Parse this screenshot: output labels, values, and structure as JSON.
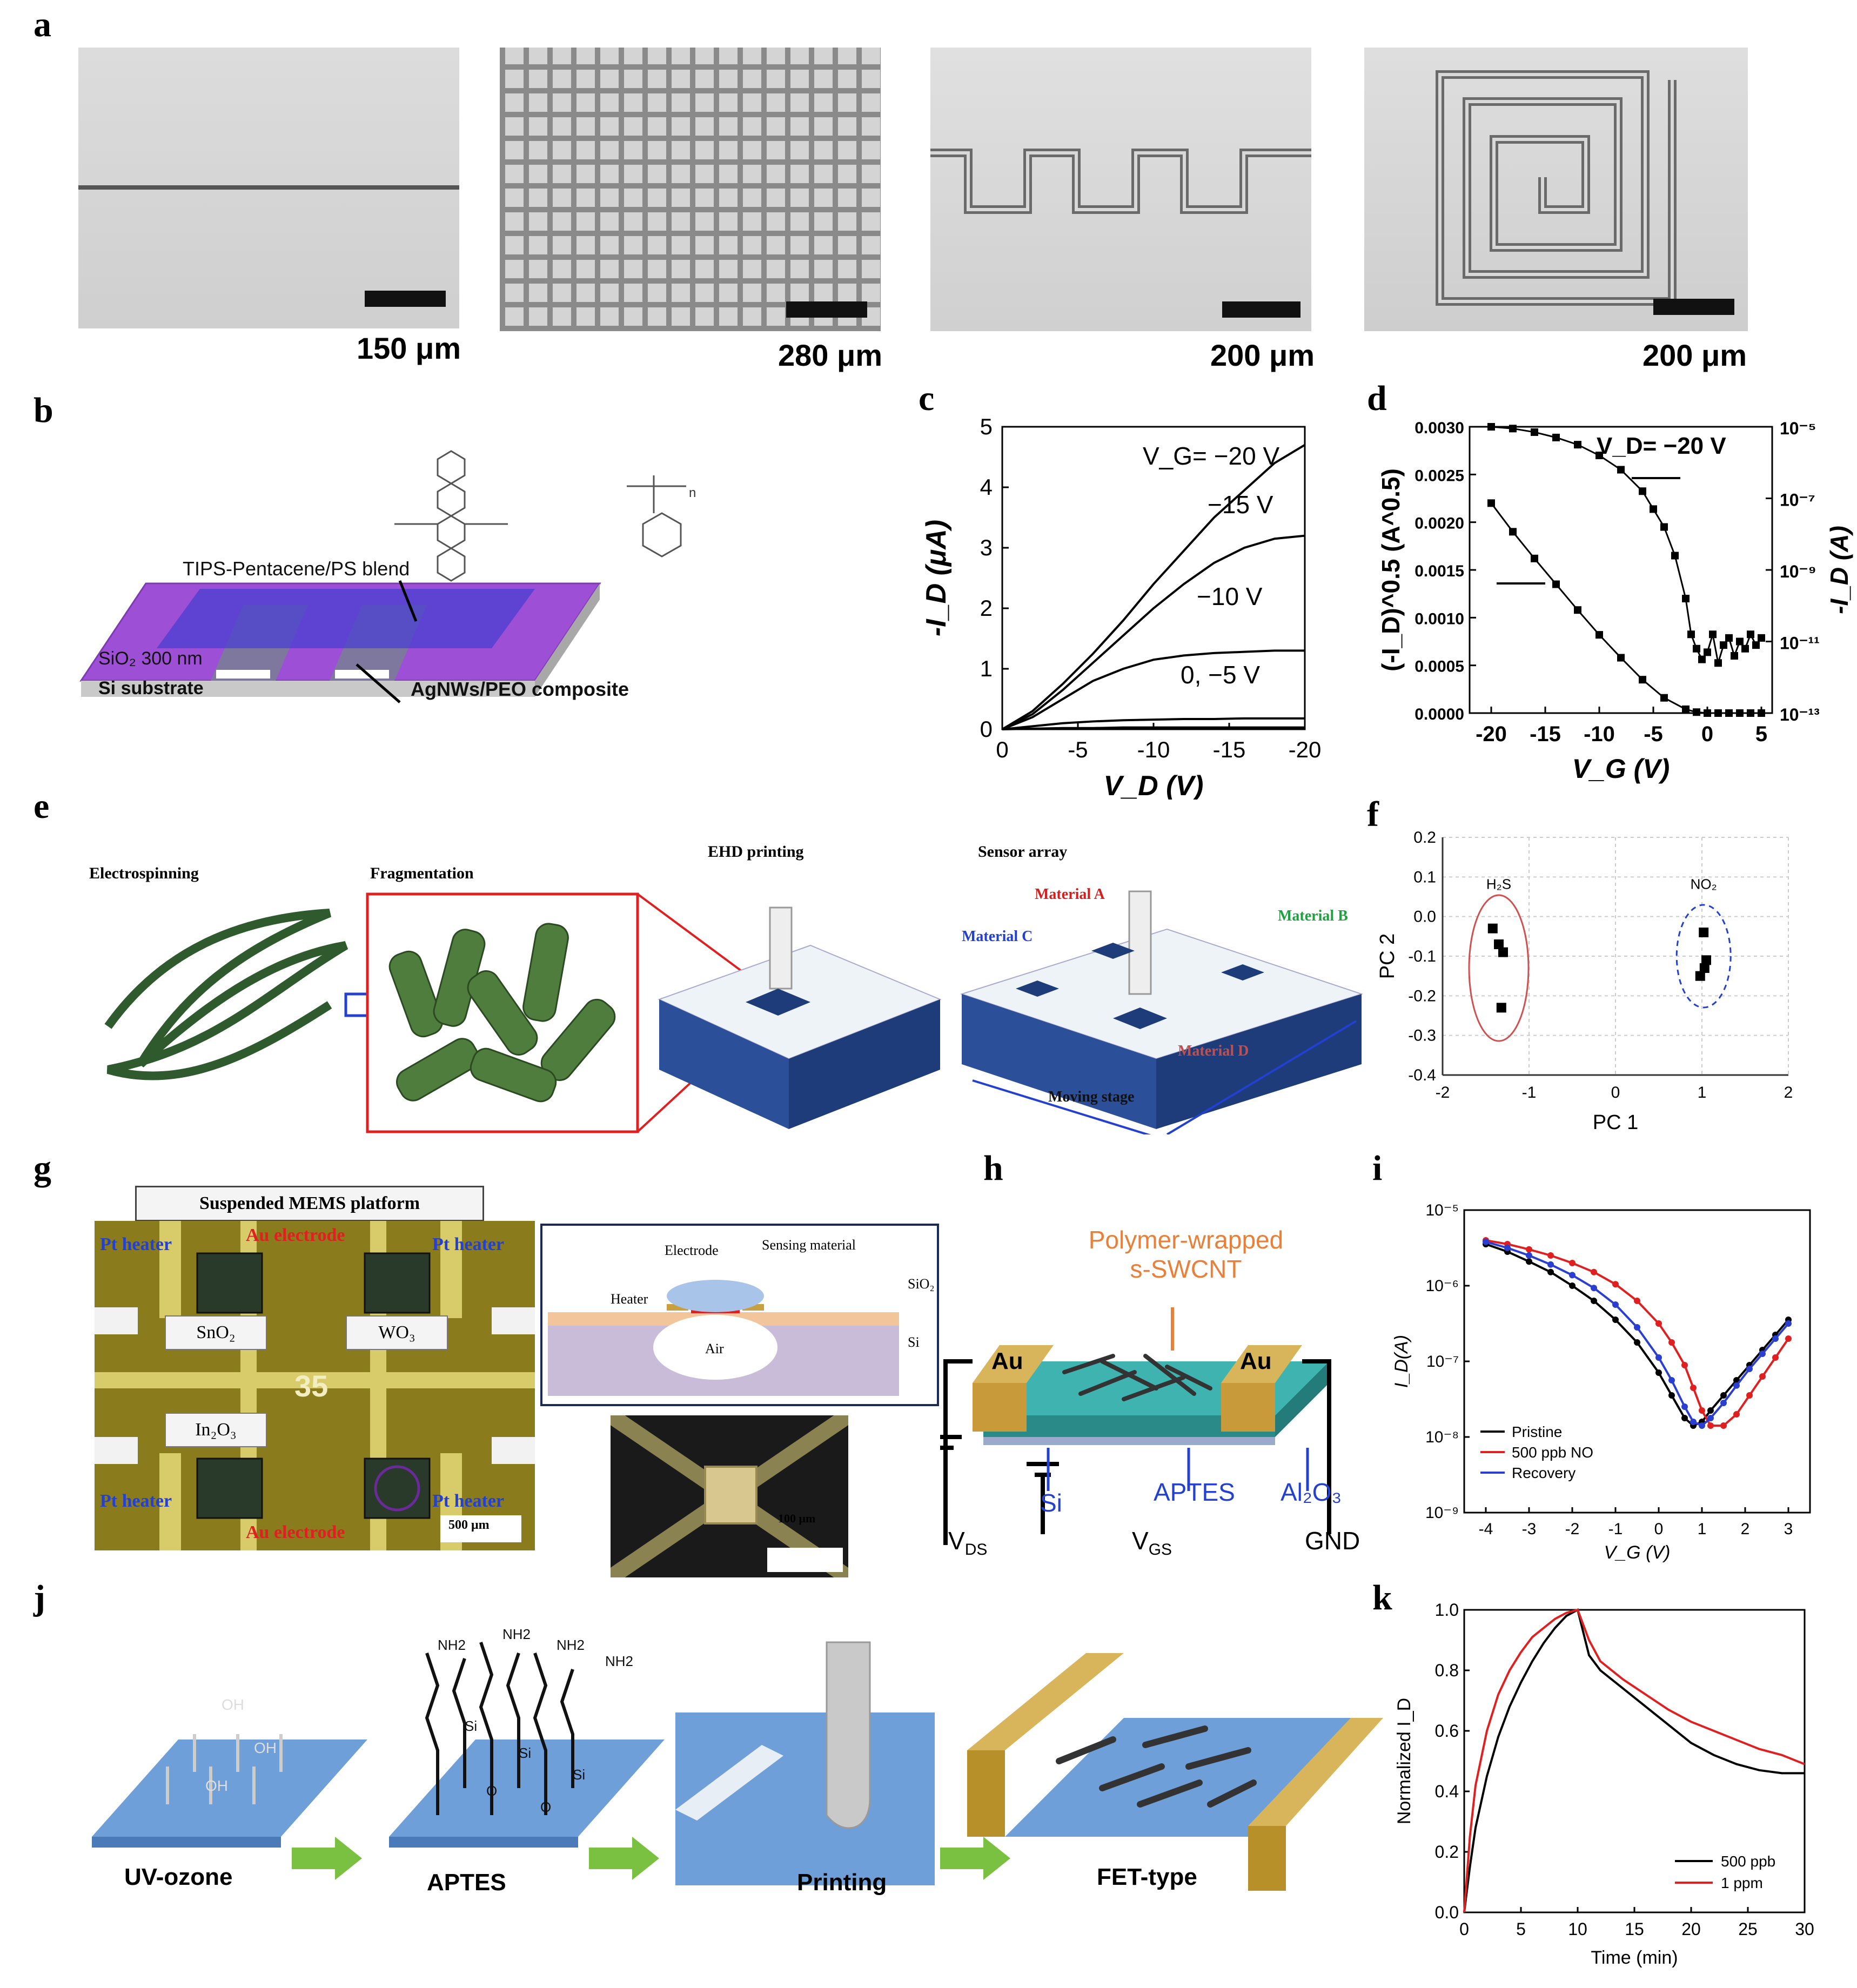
{
  "panels": {
    "a": "a",
    "b": "b",
    "c": "c",
    "d": "d",
    "e": "e",
    "f": "f",
    "g": "g",
    "h": "h",
    "i": "i",
    "j": "j",
    "k": "k"
  },
  "panel_a": {
    "scales": [
      "150 μm",
      "280 μm",
      "200 μm",
      "200 μm"
    ]
  },
  "panel_b": {
    "blend_label": "TIPS-Pentacene/PS blend",
    "oxide_label": "SiO₂ 300 nm",
    "substrate_label": "Si substrate",
    "electrode_label": "AgNWs/PEO  composite",
    "n_label": "n"
  },
  "panel_e": {
    "step1": "Electrospinning",
    "step2": "Fragmentation",
    "step3": "EHD printing",
    "step4": "Sensor array",
    "mat_a": "Material A",
    "mat_b": "Material B",
    "mat_c": "Material C",
    "mat_d": "Material D",
    "stage": "Moving stage"
  },
  "panel_g": {
    "title": "Suspended MEMS platform",
    "pt_heater": "Pt heater",
    "au_electrode": "Au electrode",
    "sno2": "SnO₂",
    "wo3": "WO₃",
    "in2o3": "In₂O₃",
    "chip_no": "35",
    "scale1": "500 μm",
    "scale2": "100 μm",
    "inset_electrode": "Electrode",
    "inset_sensing": "Sensing material",
    "inset_heater": "Heater",
    "inset_sio2": "SiO₂",
    "inset_air": "Air",
    "inset_si": "Si"
  },
  "panel_h": {
    "title_line1": "Polymer-wrapped",
    "title_line2": "s-SWCNT",
    "au": "Au",
    "si": "Si",
    "aptes": "APTES",
    "al2o3": "Al₂O₃",
    "vds": "V",
    "vds_sub": "DS",
    "vgs": "V",
    "vgs_sub": "GS",
    "gnd": "GND"
  },
  "panel_j": {
    "step1": "UV-ozone",
    "step2": "APTES",
    "step3": "Printing",
    "step4": "FET-type",
    "oh": "OH",
    "nh2": "NH2",
    "si": "Si",
    "o": "O"
  },
  "chart_data": [
    {
      "id": "c",
      "type": "line",
      "xlabel": "V_D (V)",
      "ylabel": "-I_D (μA)",
      "xlim": [
        0,
        -20
      ],
      "ylim": [
        0,
        5
      ],
      "x_ticks": [
        "0",
        "-5",
        "-10",
        "-15",
        "-20"
      ],
      "y_ticks": [
        "0",
        "1",
        "2",
        "3",
        "4",
        "5"
      ],
      "x": [
        0,
        -2,
        -4,
        -6,
        -8,
        -10,
        -12,
        -14,
        -16,
        -18,
        -20
      ],
      "series": [
        {
          "name": "V_G= −20 V",
          "values": [
            0,
            0.3,
            0.75,
            1.25,
            1.8,
            2.4,
            2.95,
            3.5,
            3.95,
            4.4,
            4.7
          ]
        },
        {
          "name": "−15 V",
          "values": [
            0,
            0.25,
            0.65,
            1.1,
            1.55,
            2.0,
            2.4,
            2.75,
            3.0,
            3.15,
            3.2
          ]
        },
        {
          "name": "−10 V",
          "values": [
            0,
            0.2,
            0.5,
            0.8,
            1.0,
            1.15,
            1.22,
            1.26,
            1.28,
            1.3,
            1.3
          ]
        },
        {
          "name": "0, −5 V",
          "values": [
            0,
            0.05,
            0.1,
            0.13,
            0.15,
            0.16,
            0.17,
            0.17,
            0.18,
            0.18,
            0.18
          ]
        },
        {
          "name": "",
          "values": [
            0,
            0.01,
            0.02,
            0.02,
            0.03,
            0.03,
            0.03,
            0.03,
            0.03,
            0.03,
            0.03
          ]
        }
      ],
      "labels": [
        "V_G= −20 V",
        "−15 V",
        "−10 V",
        "0, −5 V"
      ]
    },
    {
      "id": "d",
      "type": "scatter",
      "xlabel": "V_G (V)",
      "ylabel_left": "(-I_D)^0.5 (A^0.5)",
      "ylabel_right": "-I_D (A)",
      "xlim": [
        -22,
        6
      ],
      "ylim_left": [
        0,
        0.003
      ],
      "ylim_right_log": [
        -13,
        -5
      ],
      "x_ticks": [
        "-20",
        "-15",
        "-10",
        "-5",
        "0",
        "5"
      ],
      "y_ticks_left": [
        "0.0000",
        "0.0005",
        "0.0010",
        "0.0015",
        "0.0020",
        "0.0025",
        "0.0030"
      ],
      "y_ticks_right": [
        "10⁻¹³",
        "10⁻¹¹",
        "10⁻⁹",
        "10⁻⁷",
        "10⁻⁵"
      ],
      "annotation": "V_D= −20 V",
      "sqrt_series": {
        "x": [
          -20,
          -18,
          -16,
          -14,
          -12,
          -10,
          -8,
          -6,
          -4,
          -2,
          -1,
          0,
          1,
          2,
          3,
          4,
          5
        ],
        "values": [
          0.0022,
          0.0019,
          0.00162,
          0.00135,
          0.00108,
          0.00082,
          0.00058,
          0.00035,
          0.00016,
          4e-05,
          1e-05,
          0,
          0,
          0,
          0,
          0,
          0
        ]
      },
      "log_series": {
        "x": [
          -20,
          -18,
          -16,
          -14,
          -12,
          -10,
          -8,
          -6,
          -5,
          -4,
          -3,
          -2,
          -1.5,
          -1,
          -0.5,
          0,
          0.5,
          1,
          1.5,
          2,
          2.5,
          3,
          3.5,
          4,
          4.5,
          5
        ],
        "values": [
          -5.0,
          -5.05,
          -5.15,
          -5.3,
          -5.5,
          -5.8,
          -6.2,
          -6.8,
          -7.3,
          -7.8,
          -8.6,
          -9.8,
          -10.8,
          -11.2,
          -11.5,
          -11.3,
          -10.8,
          -11.6,
          -11.1,
          -10.9,
          -11.4,
          -11.0,
          -11.2,
          -10.8,
          -11.1,
          -10.9
        ]
      }
    },
    {
      "id": "f",
      "type": "scatter",
      "xlabel": "PC 1",
      "ylabel": "PC 2",
      "xlim": [
        -2,
        2
      ],
      "ylim": [
        -0.4,
        0.2
      ],
      "x_ticks": [
        "-2",
        "-1",
        "0",
        "1",
        "2"
      ],
      "y_ticks": [
        "0.2",
        "0.1",
        "0.0",
        "-0.1",
        "-0.2",
        "-0.3",
        "-0.4"
      ],
      "series": [
        {
          "name": "H₂S",
          "points": [
            [
              -1.42,
              -0.03
            ],
            [
              -1.35,
              -0.07
            ],
            [
              -1.3,
              -0.09
            ],
            [
              -1.32,
              -0.23
            ]
          ]
        },
        {
          "name": "NO₂",
          "points": [
            [
              1.02,
              -0.04
            ],
            [
              1.05,
              -0.11
            ],
            [
              1.03,
              -0.13
            ],
            [
              0.98,
              -0.15
            ]
          ]
        }
      ]
    },
    {
      "id": "i",
      "type": "line",
      "xlabel": "V_G (V)",
      "ylabel": "I_D(A)",
      "xlim": [
        -4.5,
        3.5
      ],
      "ylim_log": [
        -9,
        -5
      ],
      "x_ticks": [
        "-4",
        "-3",
        "-2",
        "-1",
        "0",
        "1",
        "2",
        "3"
      ],
      "y_ticks": [
        "10⁻⁹",
        "10⁻⁸",
        "10⁻⁷",
        "10⁻⁶",
        "10⁻⁵"
      ],
      "x": [
        -4,
        -3.5,
        -3,
        -2.5,
        -2,
        -1.5,
        -1,
        -0.5,
        0,
        0.3,
        0.6,
        0.8,
        1.0,
        1.2,
        1.5,
        1.8,
        2.1,
        2.4,
        2.7,
        3.0
      ],
      "series": [
        {
          "name": "Pristine",
          "color": "#000000",
          "values": [
            -5.45,
            -5.55,
            -5.68,
            -5.82,
            -6.0,
            -6.2,
            -6.45,
            -6.75,
            -7.15,
            -7.45,
            -7.75,
            -7.85,
            -7.8,
            -7.65,
            -7.45,
            -7.25,
            -7.05,
            -6.85,
            -6.65,
            -6.45
          ]
        },
        {
          "name": "500 ppb NO",
          "color": "#e02020",
          "values": [
            -5.4,
            -5.45,
            -5.52,
            -5.6,
            -5.7,
            -5.82,
            -5.98,
            -6.2,
            -6.5,
            -6.75,
            -7.05,
            -7.35,
            -7.65,
            -7.85,
            -7.85,
            -7.7,
            -7.45,
            -7.2,
            -6.95,
            -6.7
          ]
        },
        {
          "name": "Recovery",
          "color": "#2a3fd0",
          "values": [
            -5.42,
            -5.5,
            -5.6,
            -5.72,
            -5.86,
            -6.03,
            -6.25,
            -6.55,
            -6.95,
            -7.25,
            -7.6,
            -7.8,
            -7.85,
            -7.75,
            -7.55,
            -7.32,
            -7.1,
            -6.9,
            -6.7,
            -6.5
          ]
        }
      ]
    },
    {
      "id": "k",
      "type": "line",
      "xlabel": "Time (min)",
      "ylabel": "Normalized I_D",
      "xlim": [
        0,
        30
      ],
      "ylim": [
        0,
        1
      ],
      "x_ticks": [
        "0",
        "5",
        "10",
        "15",
        "20",
        "25",
        "30"
      ],
      "y_ticks": [
        "0.0",
        "0.2",
        "0.4",
        "0.6",
        "0.8",
        "1.0"
      ],
      "x": [
        0,
        0.5,
        1,
        2,
        3,
        4,
        5,
        6,
        7,
        8,
        9,
        10,
        11,
        12,
        14,
        16,
        18,
        20,
        22,
        24,
        26,
        28,
        30
      ],
      "series": [
        {
          "name": "500 ppb",
          "color": "#000000",
          "values": [
            0.0,
            0.15,
            0.28,
            0.45,
            0.58,
            0.68,
            0.76,
            0.83,
            0.89,
            0.94,
            0.98,
            1.0,
            0.85,
            0.8,
            0.74,
            0.68,
            0.62,
            0.56,
            0.52,
            0.49,
            0.47,
            0.46,
            0.46
          ]
        },
        {
          "name": "1 ppm",
          "color": "#e02020",
          "values": [
            0.0,
            0.25,
            0.42,
            0.6,
            0.72,
            0.8,
            0.86,
            0.91,
            0.94,
            0.97,
            0.99,
            1.0,
            0.9,
            0.83,
            0.77,
            0.72,
            0.67,
            0.63,
            0.6,
            0.57,
            0.54,
            0.52,
            0.49
          ]
        }
      ]
    }
  ]
}
